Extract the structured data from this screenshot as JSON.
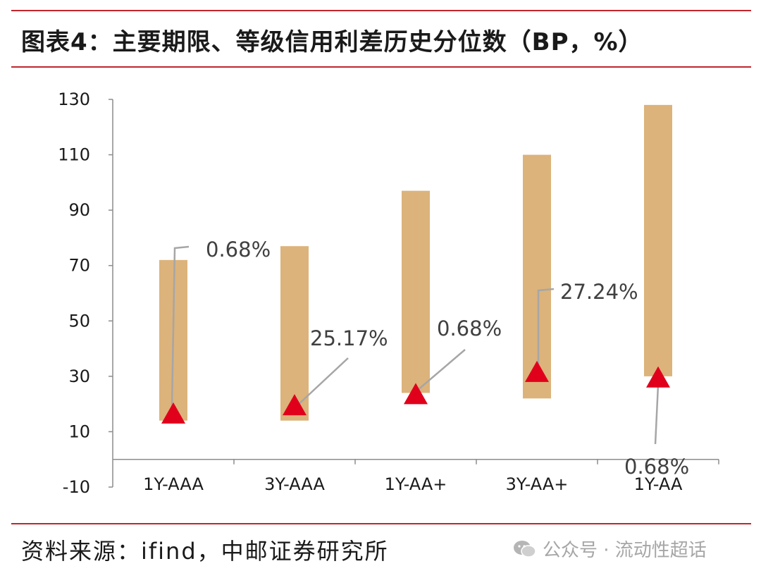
{
  "header": {
    "title": "图表4：主要期限、等级信用利差历史分位数（BP，%）"
  },
  "footer": {
    "source": "资料来源：ifind，中邮证券研究所"
  },
  "watermark": {
    "text": "公众号 · 流动性超话",
    "icon": "wechat-icon"
  },
  "colors": {
    "accent_rule": "#c0262d",
    "bar": "#dcb37b",
    "marker": "#e0001b",
    "leader": "#a6a6a6"
  },
  "chart_data": {
    "type": "bar",
    "subtype": "floating-range-with-marker",
    "categories": [
      "1Y-AAA",
      "3Y-AAA",
      "1Y-AA+",
      "3Y-AA+",
      "1Y-AA"
    ],
    "ylim": [
      -10,
      130
    ],
    "yticks": [
      "130",
      "110",
      "90",
      "70",
      "50",
      "30",
      "10",
      "-10"
    ],
    "ytick_values": [
      130,
      110,
      90,
      70,
      50,
      30,
      10,
      -10
    ],
    "grid": false,
    "ranges": [
      {
        "low": 14,
        "high": 72
      },
      {
        "low": 14,
        "high": 77
      },
      {
        "low": 24,
        "high": 97
      },
      {
        "low": 22,
        "high": 110
      },
      {
        "low": 30,
        "high": 128
      }
    ],
    "current": [
      16,
      19,
      23,
      31,
      29
    ],
    "percentile_labels": [
      "0.68%",
      "25.17%",
      "0.68%",
      "27.24%",
      "0.68%"
    ]
  }
}
